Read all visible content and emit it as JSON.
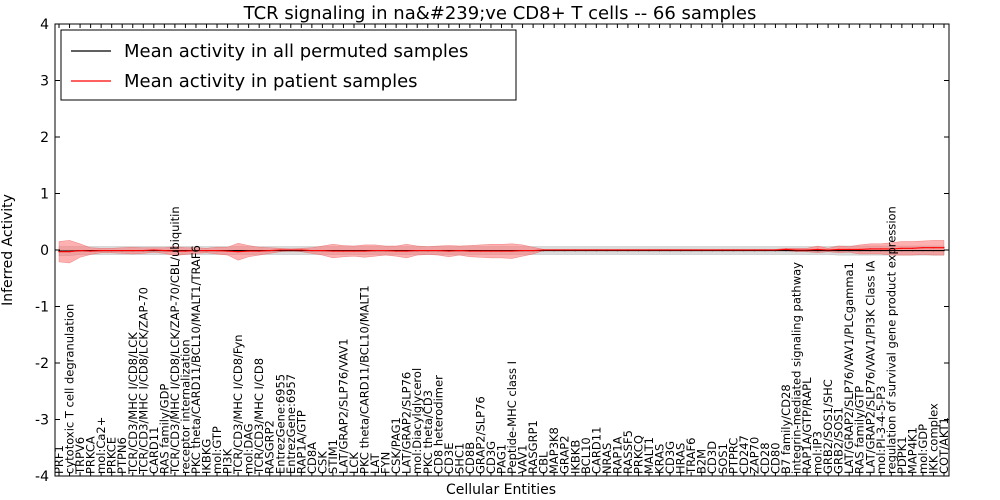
{
  "chart_data": {
    "type": "line",
    "title": "TCR signaling in na&#239;ve CD8+ T cells -- 66 samples",
    "xlabel": "Cellular Entities",
    "ylabel": "Inferred Activity",
    "ylim": [
      -4,
      4
    ],
    "yticks": [
      -4,
      -3,
      -2,
      -1,
      0,
      1,
      2,
      3,
      4
    ],
    "legend_position": "top-left",
    "grid": false,
    "colors": {
      "permuted_line": "#000000",
      "permuted_band": "#c8c8c8",
      "patient_line": "#ff0000",
      "patient_band": "#ff7070"
    },
    "categories": [
      "PRF1",
      "cytotoxic T cell degranulation",
      "TRPV6",
      "PRKCA",
      "mol:Ca2+",
      "PRKCE",
      "PTPN6",
      "TCR/CD3/MHC I/CD8/LCK",
      "TCR/CD3/MHC I/CD8/LCK/ZAP-70",
      "CARD11",
      "RAS family/GDP",
      "TCR/CD3/MHC I/CD8/LCK/ZAP-70/CBL/ubiquitin",
      "receptor internalization",
      "PKC theta/CARD11/BCL10/MALT1/TRAF6",
      "IKBKG",
      "mol:GTP",
      "PI3K",
      "TCR/CD3/MHC I/CD8/Fyn",
      "mol:DAG",
      "TCR/CD3/MHC I/CD8",
      "RASGRP2",
      "EntrezGene:6955",
      "EntrezGene:6957",
      "RAP1A/GTP",
      "CD8A",
      "CSK",
      "STIM1",
      "LAT/GRAP2/SLP76/VAV1",
      "LCK",
      "PKC theta/CARD11/BCL10/MALT1",
      "LAT",
      "FYN",
      "CSK/PAG1",
      "LAT/GRAP2/SLP76",
      "mol:Diacylglycerol",
      "PKC theta/CD3",
      "CD8 heterodimer",
      "CD3E",
      "SHC1",
      "CD8B",
      "GRAP2/SLP76",
      "CD3G",
      "PAG1",
      "Peptide-MHC class I",
      "VAV1",
      "RASGRP1",
      "CBL",
      "MAP3K8",
      "GRAP2",
      "IKBKB",
      "BCL10",
      "CARD11",
      "NRAS",
      "RAP1A",
      "RASSF5",
      "PRKCQ",
      "MALT1",
      "KRAS",
      "CD3G",
      "HRAS",
      "TRAF6",
      "B2M",
      "CD3D",
      "SOS1",
      "PTPRC",
      "CD247",
      "ZAP70",
      "CD28",
      "CD80",
      "B7 family/CD28",
      "integrin-mediated signaling pathway",
      "RAP1A/GTP/RAPL",
      "mol:IP3",
      "GRB2/SOS1/SHC",
      "GRB2/SOS1",
      "LAT/GRAP2/SLP76/VAV1/PLCgamma1",
      "RAS family/GTP",
      "LAT/GRAP2/SLP76/VAV1/PI3K Class IA",
      "mol:PI-3-4-5-P3",
      "regulation of survival gene product expression",
      "PDPK1",
      "MAP4K1",
      "mol:GDP",
      "IKK complex",
      "COT/AKT1"
    ],
    "series": [
      {
        "name": "Mean activity in all permuted samples",
        "values": [
          -0.02,
          -0.02,
          -0.01,
          -0.01,
          -0.01,
          -0.01,
          -0.01,
          -0.01,
          -0.01,
          -0.01,
          -0.01,
          -0.01,
          -0.01,
          -0.01,
          -0.01,
          -0.01,
          -0.01,
          -0.01,
          -0.01,
          -0.01,
          -0.01,
          -0.01,
          -0.01,
          -0.01,
          -0.01,
          -0.01,
          -0.01,
          -0.01,
          -0.01,
          -0.01,
          -0.01,
          -0.01,
          -0.01,
          -0.01,
          -0.01,
          -0.01,
          -0.01,
          -0.01,
          -0.01,
          -0.01,
          -0.01,
          -0.01,
          -0.01,
          -0.01,
          -0.01,
          -0.01,
          -0.01,
          -0.01,
          -0.01,
          -0.01,
          -0.01,
          -0.01,
          -0.01,
          -0.01,
          -0.01,
          -0.01,
          -0.01,
          -0.01,
          -0.01,
          -0.01,
          -0.01,
          -0.01,
          -0.01,
          -0.01,
          -0.01,
          -0.01,
          -0.01,
          -0.01,
          -0.01,
          -0.01,
          -0.01,
          -0.01,
          -0.01,
          -0.01,
          -0.01,
          -0.01,
          -0.01,
          -0.01,
          -0.01,
          -0.01,
          -0.01,
          -0.01,
          -0.01,
          -0.01,
          -0.01
        ],
        "band": [
          0.08,
          0.08,
          0.07,
          0.07,
          0.07,
          0.07,
          0.07,
          0.07,
          0.07,
          0.07,
          0.07,
          0.07,
          0.07,
          0.07,
          0.07,
          0.07,
          0.07,
          0.07,
          0.07,
          0.07,
          0.07,
          0.07,
          0.07,
          0.07,
          0.07,
          0.07,
          0.07,
          0.07,
          0.07,
          0.07,
          0.07,
          0.07,
          0.07,
          0.07,
          0.07,
          0.07,
          0.07,
          0.07,
          0.07,
          0.07,
          0.07,
          0.07,
          0.07,
          0.07,
          0.07,
          0.07,
          0.07,
          0.07,
          0.07,
          0.07,
          0.07,
          0.07,
          0.07,
          0.07,
          0.07,
          0.07,
          0.07,
          0.07,
          0.07,
          0.07,
          0.07,
          0.07,
          0.07,
          0.07,
          0.07,
          0.07,
          0.07,
          0.07,
          0.07,
          0.07,
          0.07,
          0.07,
          0.07,
          0.07,
          0.08,
          0.08,
          0.08,
          0.08,
          0.08,
          0.08,
          0.08,
          0.08,
          0.08,
          0.08,
          0.08
        ]
      },
      {
        "name": "Mean activity in patient samples",
        "values": [
          -0.03,
          -0.03,
          -0.01,
          -0.02,
          -0.01,
          -0.01,
          -0.01,
          -0.01,
          -0.01,
          0.0,
          -0.01,
          -0.02,
          -0.02,
          -0.01,
          -0.01,
          -0.01,
          -0.02,
          -0.03,
          -0.02,
          -0.02,
          -0.01,
          0.0,
          0.0,
          0.0,
          -0.01,
          -0.01,
          -0.02,
          -0.02,
          -0.02,
          -0.02,
          -0.01,
          -0.01,
          -0.02,
          -0.02,
          -0.01,
          -0.01,
          -0.01,
          -0.02,
          -0.01,
          -0.02,
          -0.02,
          -0.02,
          -0.02,
          -0.02,
          -0.01,
          -0.01,
          0.0,
          0.0,
          0.0,
          0.0,
          0.0,
          0.0,
          0.0,
          0.0,
          0.0,
          0.0,
          0.0,
          0.0,
          0.0,
          0.0,
          0.0,
          0.0,
          0.0,
          0.0,
          0.0,
          0.0,
          0.0,
          0.0,
          0.0,
          0.01,
          0.0,
          0.0,
          0.01,
          0.0,
          0.01,
          0.01,
          0.01,
          0.02,
          0.02,
          0.02,
          0.03,
          0.03,
          0.04,
          0.04,
          0.04
        ],
        "band": [
          0.18,
          0.2,
          0.12,
          0.06,
          0.04,
          0.04,
          0.05,
          0.06,
          0.05,
          0.04,
          0.05,
          0.08,
          0.06,
          0.05,
          0.04,
          0.06,
          0.07,
          0.15,
          0.1,
          0.07,
          0.05,
          0.03,
          0.02,
          0.03,
          0.05,
          0.08,
          0.12,
          0.1,
          0.09,
          0.11,
          0.1,
          0.08,
          0.09,
          0.12,
          0.08,
          0.07,
          0.08,
          0.1,
          0.08,
          0.1,
          0.11,
          0.12,
          0.12,
          0.13,
          0.1,
          0.06,
          0.01,
          0.01,
          0.01,
          0.01,
          0.01,
          0.01,
          0.01,
          0.01,
          0.01,
          0.01,
          0.01,
          0.01,
          0.01,
          0.01,
          0.01,
          0.01,
          0.01,
          0.01,
          0.01,
          0.01,
          0.01,
          0.01,
          0.01,
          0.02,
          0.03,
          0.03,
          0.06,
          0.03,
          0.06,
          0.05,
          0.08,
          0.09,
          0.09,
          0.11,
          0.12,
          0.12,
          0.12,
          0.13,
          0.13
        ]
      }
    ]
  }
}
